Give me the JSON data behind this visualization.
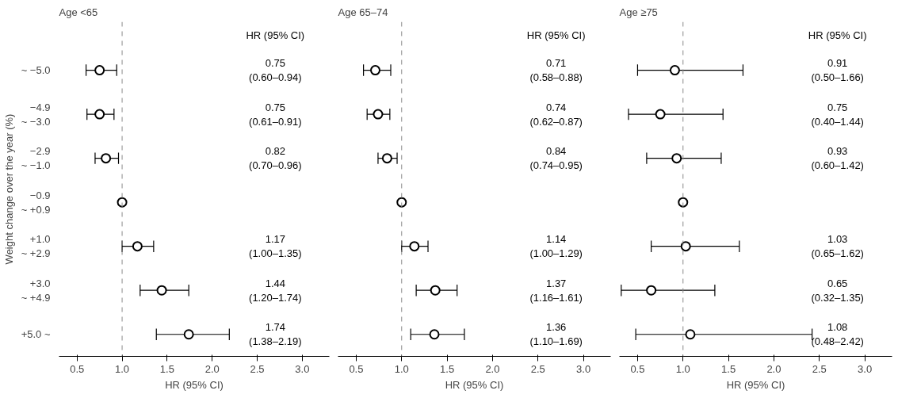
{
  "chart_data": [
    {
      "type": "scatter",
      "orientation": "horizontal",
      "title": "Age <65",
      "xlabel": "HR (95% CI)",
      "ylabel": "Weight change over the year (%)",
      "annotations": [
        "HR (95% CI)",
        "0.75\n(0.60–0.94)",
        "0.75\n(0.61–0.91)",
        "0.82\n(0.70–0.96)",
        "1.17\n(1.00–1.35)",
        "1.44\n(1.20–1.74)",
        "1.74\n(1.38–2.19)"
      ],
      "categories": [
        "~ −5.0",
        "−4.9\n~ −3.0",
        "−2.9\n~ −1.0",
        "−0.9\n~ +0.9",
        "+1.0\n~ +2.9",
        "+3.0\n~ +4.9",
        "+5.0 ~"
      ],
      "marker": "circle",
      "series": [
        {
          "color": "#000000",
          "values": [
            0.75,
            0.75,
            0.82,
            1.0,
            1.17,
            1.44,
            1.74
          ],
          "errors": [
            [
              0.6,
              0.94
            ],
            [
              0.61,
              0.91
            ],
            [
              0.7,
              0.96
            ],
            null,
            [
              1.0,
              1.35
            ],
            [
              1.2,
              1.74
            ],
            [
              1.38,
              2.19
            ]
          ]
        }
      ],
      "xlim": [
        0.3,
        3.3
      ],
      "xticks": [
        {
          "value": 0.5,
          "label": "0.5"
        },
        {
          "value": 1.0,
          "label": "1.0"
        },
        {
          "value": 1.5,
          "label": "1.5"
        },
        {
          "value": 2.0,
          "label": "2.0"
        },
        {
          "value": 2.5,
          "label": "2.5"
        },
        {
          "value": 3.0,
          "label": "3.0"
        }
      ],
      "ref_lines": [
        {
          "axis": "x",
          "value": 1.0,
          "line_style": "dashed",
          "color": "#888888"
        }
      ]
    },
    {
      "type": "scatter",
      "orientation": "horizontal",
      "title": "Age 65–74",
      "xlabel": "HR (95% CI)",
      "annotations": [
        "HR (95% CI)",
        "0.71\n(0.58–0.88)",
        "0.74\n(0.62–0.87)",
        "0.84\n(0.74–0.95)",
        "1.14\n(1.00–1.29)",
        "1.37\n(1.16–1.61)",
        "1.36\n(1.10–1.69)"
      ],
      "categories": [
        null,
        null,
        null,
        null,
        null,
        null,
        null
      ],
      "marker": "circle",
      "series": [
        {
          "color": "#000000",
          "values": [
            0.71,
            0.74,
            0.84,
            1.0,
            1.14,
            1.37,
            1.36
          ],
          "errors": [
            [
              0.58,
              0.88
            ],
            [
              0.62,
              0.87
            ],
            [
              0.74,
              0.95
            ],
            null,
            [
              1.0,
              1.29
            ],
            [
              1.16,
              1.61
            ],
            [
              1.1,
              1.69
            ]
          ]
        }
      ],
      "xlim": [
        0.3,
        3.3
      ],
      "xticks": [
        {
          "value": 0.5,
          "label": "0.5"
        },
        {
          "value": 1.0,
          "label": "1.0"
        },
        {
          "value": 1.5,
          "label": "1.5"
        },
        {
          "value": 2.0,
          "label": "2.0"
        },
        {
          "value": 2.5,
          "label": "2.5"
        },
        {
          "value": 3.0,
          "label": "3.0"
        }
      ],
      "ref_lines": [
        {
          "axis": "x",
          "value": 1.0,
          "line_style": "dashed",
          "color": "#888888"
        }
      ]
    },
    {
      "type": "scatter",
      "orientation": "horizontal",
      "title": "Age ≥75",
      "xlabel": "HR (95% CI)",
      "annotations": [
        "HR (95% CI)",
        "0.91\n(0.50–1.66)",
        "0.75\n(0.40–1.44)",
        "0.93\n(0.60–1.42)",
        "1.03\n(0.65–1.62)",
        "0.65\n(0.32–1.35)",
        "1.08\n(0.48–2.42)"
      ],
      "categories": [
        null,
        null,
        null,
        null,
        null,
        null,
        null
      ],
      "marker": "circle",
      "series": [
        {
          "color": "#000000",
          "values": [
            0.91,
            0.75,
            0.93,
            1.0,
            1.03,
            0.65,
            1.08
          ],
          "errors": [
            [
              0.5,
              1.66
            ],
            [
              0.4,
              1.44
            ],
            [
              0.6,
              1.42
            ],
            null,
            [
              0.65,
              1.62
            ],
            [
              0.32,
              1.35
            ],
            [
              0.48,
              2.42
            ]
          ]
        }
      ],
      "xlim": [
        0.3,
        3.3
      ],
      "xticks": [
        {
          "value": 0.5,
          "label": "0.5"
        },
        {
          "value": 1.0,
          "label": "1.0"
        },
        {
          "value": 1.5,
          "label": "1.5"
        },
        {
          "value": 2.0,
          "label": "2.0"
        },
        {
          "value": 2.5,
          "label": "2.5"
        },
        {
          "value": 3.0,
          "label": "3.0"
        }
      ],
      "ref_lines": [
        {
          "axis": "x",
          "value": 1.0,
          "line_style": "dashed",
          "color": "#888888"
        }
      ]
    }
  ]
}
